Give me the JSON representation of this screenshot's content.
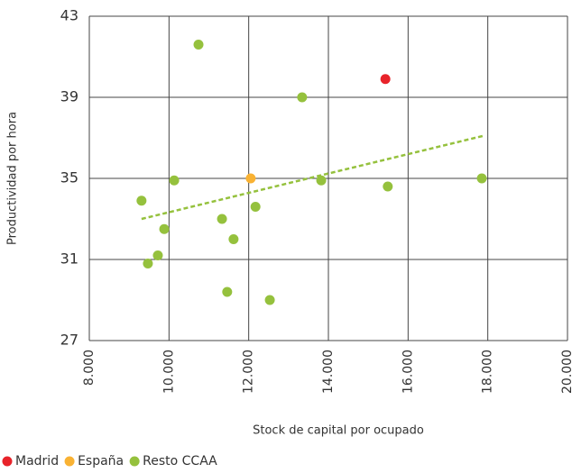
{
  "chart_data": {
    "type": "scatter",
    "x_label": "Stock de capital por ocupado",
    "y_label": "Productividad por hora",
    "xlim": [
      8000,
      20000
    ],
    "xticks": [
      {
        "value": 8000,
        "label": "8.000"
      },
      {
        "value": 10000,
        "label": "10.000"
      },
      {
        "value": 12000,
        "label": "12.000"
      },
      {
        "value": 14000,
        "label": "14.000"
      },
      {
        "value": 16000,
        "label": "16.000"
      },
      {
        "value": 18000,
        "label": "18.000"
      },
      {
        "value": 20000,
        "label": "20.000"
      }
    ],
    "ylim": [
      27,
      43
    ],
    "yticks": [
      27,
      31,
      35,
      39,
      43
    ],
    "grid": true,
    "legend": "bottom",
    "series": [
      {
        "name": "Madrid",
        "color": "#e8232a",
        "x": [
          15430
        ],
        "values": [
          39.9
        ]
      },
      {
        "name": "España",
        "color": "#f9b233",
        "x": [
          12050
        ],
        "values": [
          35.0
        ]
      },
      {
        "name": "Resto CCAA",
        "color": "#95c13d",
        "x": [
          10740,
          13340,
          9310,
          10130,
          9880,
          11330,
          12170,
          11620,
          9720,
          9470,
          11460,
          12530,
          13820,
          15490,
          17850
        ],
        "values": [
          41.6,
          39.0,
          33.9,
          34.9,
          32.5,
          33.0,
          33.6,
          32.0,
          31.2,
          30.8,
          29.4,
          29.0,
          34.9,
          34.6,
          35.0
        ]
      }
    ],
    "trend": {
      "color": "#95c13d",
      "x": [
        9310,
        17890
      ],
      "values": [
        33.0,
        37.1
      ]
    }
  }
}
